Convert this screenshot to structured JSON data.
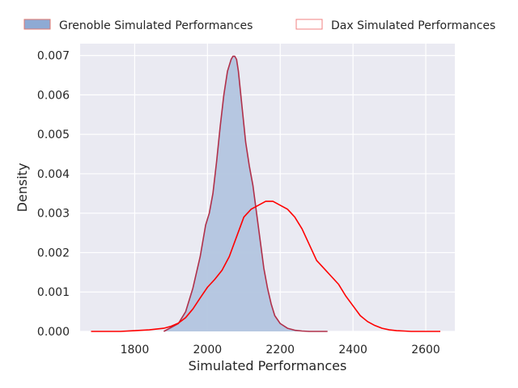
{
  "chart_data": {
    "type": "area",
    "xlabel": "Simulated Performances",
    "ylabel": "Density",
    "xlim": [
      1650,
      2680
    ],
    "ylim": [
      0,
      0.0073
    ],
    "x_ticks": [
      1800,
      2000,
      2200,
      2400,
      2600
    ],
    "x_tick_labels": [
      "1800",
      "2000",
      "2200",
      "2400",
      "2600"
    ],
    "y_ticks": [
      0,
      0.001,
      0.002,
      0.003,
      0.004,
      0.005,
      0.006,
      0.007
    ],
    "y_tick_labels": [
      "0.000",
      "0.001",
      "0.002",
      "0.003",
      "0.004",
      "0.005",
      "0.006",
      "0.007"
    ],
    "grid": true,
    "legend_position": "top-center",
    "series": [
      {
        "name": "Grenoble Simulated Performances",
        "style": "filled",
        "fill_color": "#b3c5df",
        "legend_fill": "#8eaad4",
        "line_color": "#b0304a",
        "legend_edge": "#e3786f",
        "x": [
          1880,
          1900,
          1920,
          1940,
          1960,
          1980,
          1995,
          2005,
          2015,
          2025,
          2035,
          2045,
          2055,
          2065,
          2070,
          2075,
          2080,
          2085,
          2095,
          2105,
          2115,
          2125,
          2135,
          2145,
          2155,
          2165,
          2175,
          2185,
          2200,
          2220,
          2240,
          2260,
          2280,
          2300,
          2320,
          2330
        ],
        "y": [
          0.0,
          0.0001,
          0.0002,
          0.0005,
          0.0011,
          0.0019,
          0.0027,
          0.003,
          0.0035,
          0.0043,
          0.0052,
          0.006,
          0.0066,
          0.0069,
          0.00698,
          0.00698,
          0.0069,
          0.0066,
          0.0057,
          0.0048,
          0.0042,
          0.0037,
          0.003,
          0.0023,
          0.0016,
          0.0011,
          0.0007,
          0.0004,
          0.0002,
          8e-05,
          3e-05,
          1e-05,
          0.0,
          0.0,
          0.0,
          0.0
        ]
      },
      {
        "name": "Dax Simulated Performances",
        "style": "line",
        "line_color": "#ff0000",
        "legend_fill": "#ffffff",
        "legend_edge": "#f08080",
        "x": [
          1680,
          1760,
          1800,
          1840,
          1880,
          1900,
          1920,
          1940,
          1960,
          1980,
          2000,
          2020,
          2040,
          2060,
          2080,
          2100,
          2120,
          2140,
          2160,
          2180,
          2200,
          2220,
          2240,
          2260,
          2280,
          2300,
          2320,
          2340,
          2360,
          2380,
          2400,
          2420,
          2440,
          2460,
          2480,
          2500,
          2520,
          2540,
          2560,
          2580,
          2600,
          2640
        ],
        "y": [
          0.0,
          0.0,
          2e-05,
          4e-05,
          8e-05,
          0.00013,
          0.00021,
          0.00035,
          0.00057,
          0.00085,
          0.00112,
          0.00132,
          0.00155,
          0.0019,
          0.0024,
          0.0029,
          0.0031,
          0.0032,
          0.0033,
          0.0033,
          0.0032,
          0.0031,
          0.0029,
          0.0026,
          0.0022,
          0.0018,
          0.0016,
          0.0014,
          0.0012,
          0.0009,
          0.00065,
          0.0004,
          0.00025,
          0.00015,
          8e-05,
          4e-05,
          2e-05,
          1e-05,
          0.0,
          0.0,
          0.0,
          0.0
        ]
      }
    ]
  }
}
